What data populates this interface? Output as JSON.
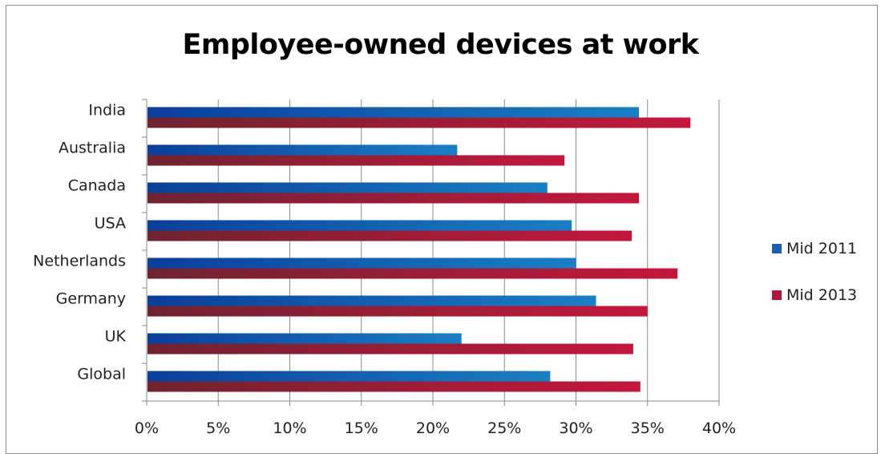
{
  "chart_data": {
    "type": "bar",
    "orientation": "horizontal",
    "title": "Employee-owned devices at work",
    "categories": [
      "India",
      "Australia",
      "Canada",
      "USA",
      "Netherlands",
      "Germany",
      "UK",
      "Global"
    ],
    "series": [
      {
        "name": "Mid 2011",
        "color": "#1a5fb0",
        "values": [
          34.4,
          21.7,
          28.0,
          29.7,
          30.0,
          31.4,
          22.0,
          28.2
        ]
      },
      {
        "name": "Mid 2013",
        "color": "#b0173a",
        "values": [
          38.0,
          29.2,
          34.4,
          33.9,
          37.1,
          35.0,
          34.0,
          34.5
        ]
      }
    ],
    "xlim": [
      0,
      40
    ],
    "xticks": [
      "0%",
      "5%",
      "10%",
      "15%",
      "20%",
      "25%",
      "30%",
      "35%",
      "40%"
    ],
    "xlabel": "",
    "ylabel": "",
    "grid": true,
    "legend_position": "right"
  }
}
